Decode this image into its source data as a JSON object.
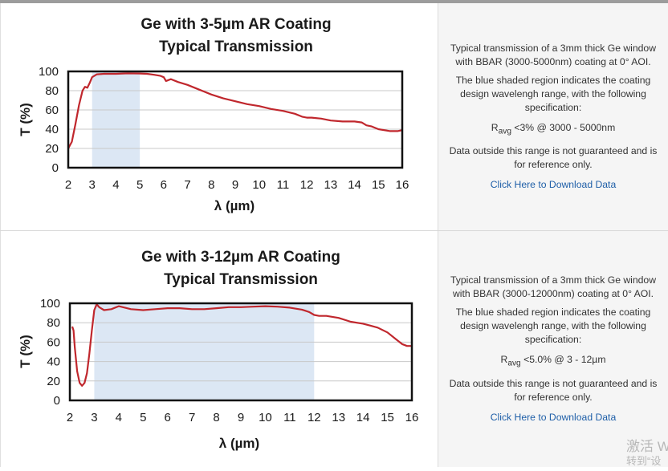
{
  "chart_data": [
    {
      "type": "line",
      "title": [
        "Ge with 3-5µm AR Coating",
        "Typical Transmission"
      ],
      "xlabel": "λ (µm)",
      "ylabel": "T (%)",
      "xlim": [
        2,
        16
      ],
      "ylim": [
        0,
        100
      ],
      "xticks": [
        2,
        3,
        4,
        5,
        6,
        7,
        8,
        9,
        10,
        11,
        12,
        13,
        14,
        15,
        16
      ],
      "yticks": [
        0,
        20,
        40,
        60,
        80,
        100
      ],
      "grid": true,
      "shaded_region": [
        3,
        5
      ],
      "line_color": "#c0272d",
      "shade_color": "#dce7f4",
      "series": [
        {
          "name": "Transmission",
          "x": [
            2.0,
            2.15,
            2.3,
            2.45,
            2.6,
            2.7,
            2.8,
            2.9,
            3.0,
            3.2,
            3.5,
            4.0,
            4.5,
            5.0,
            5.3,
            5.6,
            5.85,
            6.0,
            6.1,
            6.2,
            6.3,
            6.6,
            7.0,
            7.5,
            8.0,
            8.5,
            9.0,
            9.5,
            10.0,
            10.5,
            11.0,
            11.5,
            11.8,
            12.0,
            12.2,
            12.6,
            13.0,
            13.5,
            14.0,
            14.3,
            14.5,
            14.7,
            15.0,
            15.5,
            15.8,
            16.0
          ],
          "y": [
            20,
            27,
            45,
            65,
            80,
            84,
            83,
            88,
            94,
            97,
            97.5,
            97.5,
            98,
            97.8,
            97.5,
            96.5,
            95.5,
            94,
            90,
            91,
            92,
            89,
            86,
            81,
            76,
            72,
            69,
            66,
            64,
            61,
            59,
            56,
            53,
            52,
            52,
            51,
            49,
            48,
            48,
            47,
            44,
            43,
            40,
            38,
            38,
            39
          ]
        }
      ]
    },
    {
      "type": "line",
      "title": [
        "Ge with 3-12µm AR Coating",
        "Typical Transmission"
      ],
      "xlabel": "λ (µm)",
      "ylabel": "T (%)",
      "xlim": [
        2,
        16
      ],
      "ylim": [
        0,
        100
      ],
      "xticks": [
        2,
        3,
        4,
        5,
        6,
        7,
        8,
        9,
        10,
        11,
        12,
        13,
        14,
        15,
        16
      ],
      "yticks": [
        0,
        20,
        40,
        60,
        80,
        100
      ],
      "grid": true,
      "shaded_region": [
        3,
        12
      ],
      "line_color": "#c0272d",
      "shade_color": "#dce7f4",
      "series": [
        {
          "name": "Transmission",
          "x": [
            2.1,
            2.15,
            2.2,
            2.3,
            2.4,
            2.5,
            2.6,
            2.7,
            2.8,
            2.9,
            3.0,
            3.1,
            3.2,
            3.4,
            3.7,
            4.0,
            4.5,
            5.0,
            5.5,
            6.0,
            6.5,
            7.0,
            7.5,
            8.0,
            8.5,
            9.0,
            9.5,
            10.0,
            10.5,
            11.0,
            11.5,
            11.8,
            12.0,
            12.2,
            12.5,
            13.0,
            13.5,
            14.0,
            14.3,
            14.6,
            15.0,
            15.4,
            15.6,
            15.8,
            16.0
          ],
          "y": [
            76,
            72,
            55,
            30,
            18,
            15,
            18,
            28,
            48,
            72,
            93,
            99,
            96,
            93,
            94,
            97,
            94,
            93,
            94,
            95,
            95,
            94,
            94,
            95,
            96,
            96,
            96.5,
            97,
            96.5,
            95.5,
            93.5,
            91,
            88,
            87,
            87,
            85,
            81,
            79,
            77,
            75,
            70,
            62,
            58,
            56,
            56
          ]
        }
      ]
    }
  ],
  "info": [
    {
      "desc1": "Typical transmission of a 3mm thick Ge window with BBAR (3000-5000nm) coating at 0° AOI.",
      "desc2": "The blue shaded region indicates the coating design wavelengh range, with the following specification:",
      "spec_main": "R",
      "spec_sub": "avg",
      "spec_rest": " <3% @ 3000 - 5000nm",
      "desc3": "Data outside this range is not guaranteed and is for reference only.",
      "link": "Click Here to Download Data"
    },
    {
      "desc1": "Typical transmission of a 3mm thick Ge window with BBAR (3000-12000nm) coating at 0° AOI.",
      "desc2": "The blue shaded region indicates the coating design wavelengh range, with the following specification:",
      "spec_main": "R",
      "spec_sub": "avg",
      "spec_rest": " <5.0% @ 3 - 12µm",
      "desc3": "Data outside this range is not guaranteed and is for reference only.",
      "link": "Click Here to Download Data"
    }
  ],
  "watermark": {
    "line1": "激活 W",
    "line2": "转到“设"
  }
}
